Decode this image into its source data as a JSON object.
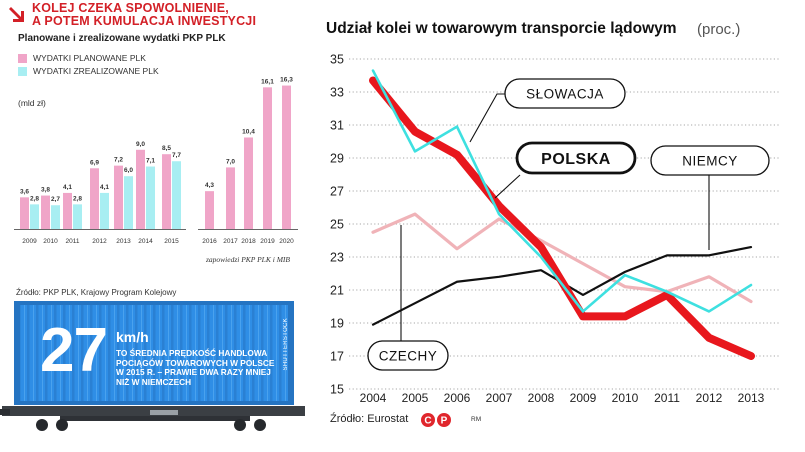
{
  "headline_lines": [
    "KOLEJ CZEKA SPOWOLNIENIE,",
    "A POTEM KUMULACJA INWESTYCJI"
  ],
  "colors": {
    "accent_red": "#d32027",
    "planned": "#f0a5c8",
    "realized": "#a8eef2",
    "container": "#2f8ee6"
  },
  "left_panel": {
    "title": "Planowane i zrealizowane wydatki PKP PLK",
    "legend_planned": "WYDATKI PLANOWANE PLK",
    "legend_realized": "WYDATKI ZREALIZOWANE PLK",
    "unit": "(mld zł)",
    "future_note": "zapowiedzi PKP PLK i MIB",
    "source": "Źródło: PKP PLK, Krajowy Program Kolejowy"
  },
  "container": {
    "speed_value": "27",
    "speed_unit": "km/h",
    "text": "TO ŚREDNIA PRĘDKOŚĆ HANDLOWA POCIĄGÓW TOWAROWYCH W POLSCE W 2015 R. – PRAWIE DWA RAZY MNIEJ NIŻ W NIEMCZECH",
    "credit": "SHUTTERSTOCK"
  },
  "right_panel": {
    "title": "Udział kolei w towarowym transporcie lądowym",
    "unit": "(proc.)",
    "source": "Źródło: Eurostat",
    "copyright_icons": [
      "copyright-icon",
      "phonographic-icon"
    ],
    "rm_label": "RM"
  },
  "chart_data": [
    {
      "type": "bar",
      "title": "Planowane i zrealizowane wydatki PKP PLK",
      "ylabel": "(mld zł)",
      "categories": [
        "2009",
        "2010",
        "2011",
        "2012",
        "2013",
        "2014",
        "2015",
        "2016",
        "2017",
        "2018",
        "2019",
        "2020"
      ],
      "series": [
        {
          "name": "WYDATKI PLANOWANE PLK",
          "values": [
            3.6,
            3.8,
            4.1,
            6.9,
            7.2,
            9.0,
            8.5,
            4.3,
            7.0,
            10.4,
            16.1,
            16.3
          ],
          "labels": [
            "3,6",
            "3,8",
            "4,1",
            "6,9",
            "7,2",
            "9,0",
            "8,5",
            "4,3",
            "7,0",
            "10,4",
            "16,1",
            "16,3"
          ]
        },
        {
          "name": "WYDATKI ZREALIZOWANE PLK",
          "values": [
            2.8,
            2.7,
            2.8,
            4.1,
            6.0,
            7.1,
            7.7,
            null,
            null,
            null,
            null,
            null
          ],
          "labels": [
            "2,8",
            "2,7",
            "2,8",
            "4,1",
            "6,0",
            "7,1",
            "7,7",
            null,
            null,
            null,
            null,
            null
          ]
        }
      ],
      "ylim": [
        0,
        17
      ],
      "grid": false
    },
    {
      "type": "line",
      "title": "Udział kolei w towarowym transporcie lądowym",
      "x": [
        "2004",
        "2005",
        "2006",
        "2007",
        "2008",
        "2009",
        "2010",
        "2011",
        "2012",
        "2013"
      ],
      "series": [
        {
          "name": "POLSKA",
          "color": "#e8171d",
          "values": [
            33.7,
            30.6,
            29.2,
            26.1,
            23.6,
            19.4,
            19.4,
            20.7,
            18.1,
            17.0
          ]
        },
        {
          "name": "SŁOWACJA",
          "color": "#3ee0e0",
          "values": [
            34.3,
            29.4,
            30.9,
            25.6,
            23.0,
            19.7,
            21.9,
            20.9,
            19.7,
            21.3
          ]
        },
        {
          "name": "NIEMCY",
          "color": "#111111",
          "values": [
            18.9,
            20.2,
            21.5,
            21.8,
            22.2,
            20.7,
            22.1,
            23.1,
            23.1,
            23.6
          ]
        },
        {
          "name": "CZECHY",
          "color": "#f0b3b8",
          "values": [
            24.5,
            25.6,
            23.5,
            25.3,
            24.0,
            22.6,
            21.2,
            20.9,
            21.8,
            20.3
          ]
        }
      ],
      "yticks": [
        "15",
        "17",
        "19",
        "21",
        "23",
        "25",
        "27",
        "29",
        "31",
        "33",
        "35"
      ],
      "ylim": [
        15,
        35
      ],
      "grid": true,
      "grid_style": "horizontal dotted",
      "legend": "callout labels on lines"
    }
  ]
}
